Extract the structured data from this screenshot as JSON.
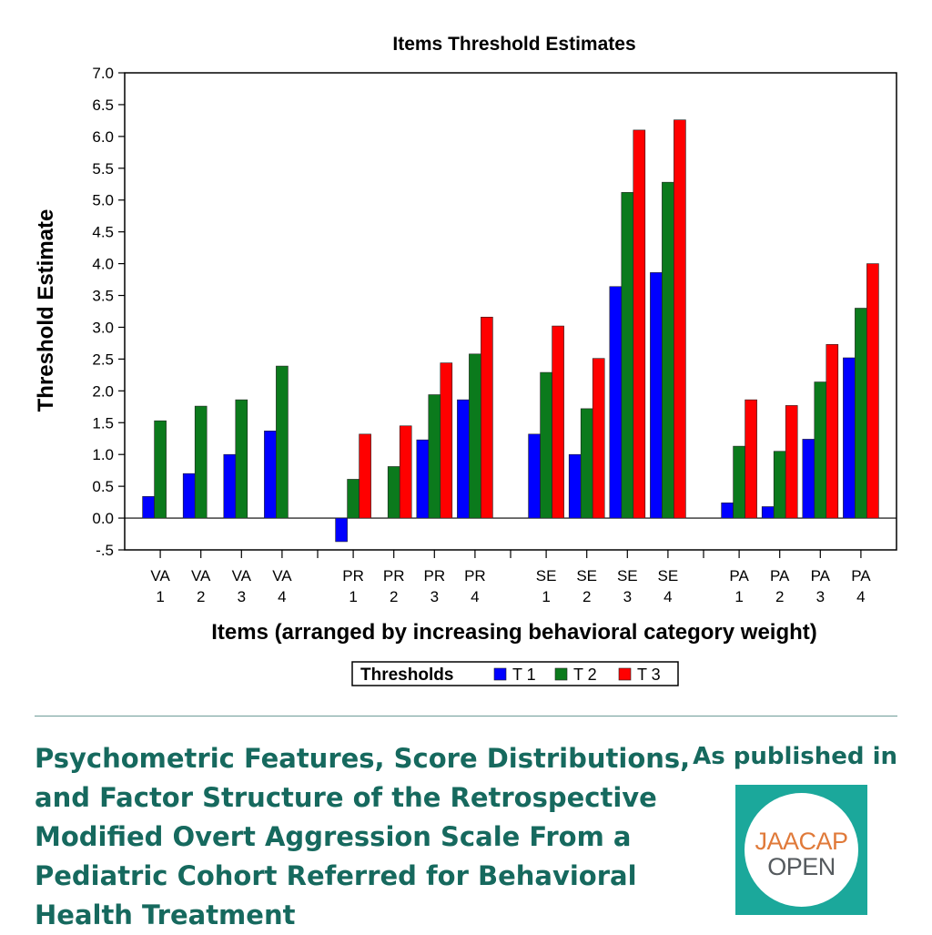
{
  "chart_data": {
    "type": "bar",
    "title": "Items Threshold Estimates",
    "xlabel": "Items (arranged by increasing behavioral category weight)",
    "ylabel": "Threshold Estimate",
    "ylim": [
      -0.5,
      7.0
    ],
    "yticks": [
      "7.0",
      "6.5",
      "6.0",
      "5.5",
      "5.0",
      "4.5",
      "4.0",
      "3.5",
      "3.0",
      "2.5",
      "2.0",
      "1.5",
      "1.0",
      "0.5",
      "0.0",
      "-.5"
    ],
    "groups": [
      {
        "items": [
          {
            "top": "VA",
            "bottom": "1",
            "values": [
              0.34,
              1.53,
              null
            ]
          },
          {
            "top": "VA",
            "bottom": "2",
            "values": [
              0.7,
              1.76,
              null
            ]
          },
          {
            "top": "VA",
            "bottom": "3",
            "values": [
              1.0,
              1.86,
              null
            ]
          },
          {
            "top": "VA",
            "bottom": "4",
            "values": [
              1.37,
              2.39,
              null
            ]
          }
        ]
      },
      {
        "items": [
          {
            "top": "PR",
            "bottom": "1",
            "values": [
              -0.37,
              0.61,
              1.32
            ]
          },
          {
            "top": "PR",
            "bottom": "2",
            "values": [
              null,
              0.81,
              1.45
            ]
          },
          {
            "top": "PR",
            "bottom": "3",
            "values": [
              1.23,
              1.94,
              2.44
            ]
          },
          {
            "top": "PR",
            "bottom": "4",
            "values": [
              1.86,
              2.58,
              3.16
            ]
          }
        ]
      },
      {
        "items": [
          {
            "top": "SE",
            "bottom": "1",
            "values": [
              1.32,
              2.29,
              3.02
            ]
          },
          {
            "top": "SE",
            "bottom": "2",
            "values": [
              1.0,
              1.72,
              2.51
            ]
          },
          {
            "top": "SE",
            "bottom": "3",
            "values": [
              3.64,
              5.12,
              6.1
            ]
          },
          {
            "top": "SE",
            "bottom": "4",
            "values": [
              3.86,
              5.28,
              6.26
            ]
          }
        ]
      },
      {
        "items": [
          {
            "top": "PA",
            "bottom": "1",
            "values": [
              0.24,
              1.13,
              1.86
            ]
          },
          {
            "top": "PA",
            "bottom": "2",
            "values": [
              0.18,
              1.05,
              1.77
            ]
          },
          {
            "top": "PA",
            "bottom": "3",
            "values": [
              1.24,
              2.14,
              2.73
            ]
          },
          {
            "top": "PA",
            "bottom": "4",
            "values": [
              2.52,
              3.3,
              4.0
            ]
          }
        ]
      }
    ],
    "series": [
      {
        "name": "T 1",
        "color": "#0000ff"
      },
      {
        "name": "T 2",
        "color": "#0b7a1c"
      },
      {
        "name": "T 3",
        "color": "#ff0000"
      }
    ],
    "legend_title": "Thresholds",
    "legend_position": "bottom",
    "grid": false
  },
  "footer": {
    "title": "Psychometric Features, Score Distributions, and Factor Structure of the Retrospective Modified Overt Aggression Scale From a Pediatric Cohort Referred for Behavioral Health Treatment",
    "published_label": "As published in",
    "logo_line1": "JAACAP",
    "logo_line2": "OPEN"
  }
}
